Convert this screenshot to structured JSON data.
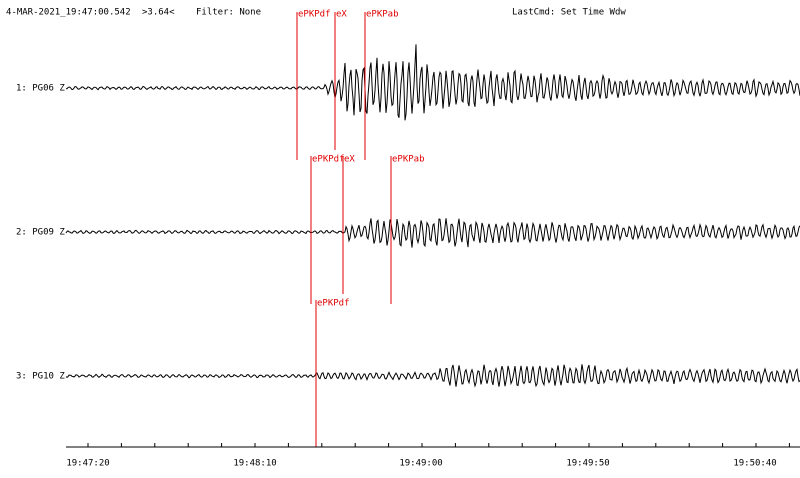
{
  "header": {
    "timestamp": "4-MAR-2021_19:47:00.542",
    "scale": ">3.64<",
    "filter": "Filter: None",
    "last_cmd": "LastCmd: Set Time Wdw"
  },
  "traces": [
    {
      "label": "1: PG06 Z",
      "picks": [
        "ePKPdf",
        "eX",
        "ePKPab"
      ]
    },
    {
      "label": "2: PG09 Z",
      "picks": [
        "ePKPdf",
        "eX",
        "ePKPab"
      ]
    },
    {
      "label": "3: PG10 Z",
      "picks": [
        "ePKPdf"
      ]
    }
  ],
  "time_axis": {
    "labels": [
      "19:47:20",
      "19:48:10",
      "19:49:00",
      "19:49:50",
      "19:50:40"
    ]
  }
}
